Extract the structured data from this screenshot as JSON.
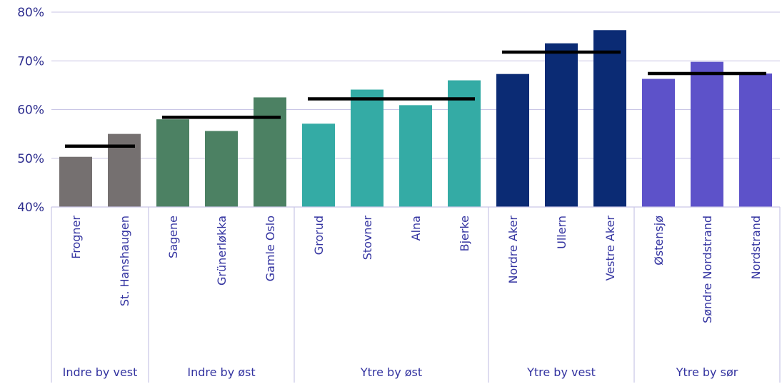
{
  "chart_data": {
    "type": "bar",
    "title": "",
    "xlabel": "",
    "ylabel": "",
    "ylim": [
      40,
      80
    ],
    "yticks": [
      "40%",
      "50%",
      "60%",
      "70%",
      "80%"
    ],
    "ytick_values": [
      40,
      50,
      60,
      70,
      80
    ],
    "grid": true,
    "categories": [
      "Frogner",
      "St. Hanshaugen",
      "Sagene",
      "Grünerløkka",
      "Gamle Oslo",
      "Grorud",
      "Stovner",
      "Alna",
      "Bjerke",
      "Nordre Aker",
      "Ullern",
      "Vestre Aker",
      "Østensjø",
      "Søndre Nordstrand",
      "Nordstrand"
    ],
    "values": [
      50.3,
      55.0,
      58.0,
      55.6,
      62.5,
      57.1,
      64.1,
      60.9,
      66.0,
      67.3,
      73.6,
      76.3,
      66.3,
      69.8,
      67.4
    ],
    "groups": [
      {
        "name": "Indre by vest",
        "start": 0,
        "count": 2,
        "average": 52.5,
        "color": "#757070"
      },
      {
        "name": "Indre by øst",
        "start": 2,
        "count": 3,
        "average": 58.4,
        "color": "#4c8163"
      },
      {
        "name": "Ytre by øst",
        "start": 5,
        "count": 4,
        "average": 62.2,
        "color": "#34aba5"
      },
      {
        "name": "Ytre by vest",
        "start": 9,
        "count": 3,
        "average": 71.8,
        "color": "#0b2b74"
      },
      {
        "name": "Ytre by sør",
        "start": 12,
        "count": 3,
        "average": 67.4,
        "color": "#5d52c9"
      }
    ],
    "average_line_color": "#000000",
    "gridline_color": "#c9c6e6",
    "axis_text_color": "#2e2e8f"
  }
}
